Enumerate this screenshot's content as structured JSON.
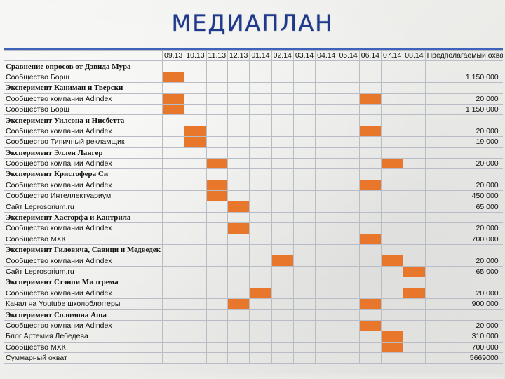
{
  "title": "МЕДИАПЛАН",
  "header": {
    "name": "",
    "months": [
      "09.13",
      "10.13",
      "11.13",
      "12.13",
      "01.14",
      "02.14",
      "03.14",
      "04.14",
      "05.14",
      "06.14",
      "07.14",
      "08.14"
    ],
    "reach": "Предполагаемый охват"
  },
  "rows": [
    {
      "name": "Сравнение опросов от Дэвида Мура",
      "section": true,
      "marks": [],
      "reach": ""
    },
    {
      "name": "Сообщество Борщ",
      "section": false,
      "marks": [
        0
      ],
      "reach": "1 150 000"
    },
    {
      "name": "Эксперимент  Каниман и Тверски",
      "section": true,
      "marks": [],
      "reach": ""
    },
    {
      "name": "Сообщество компании Adindex",
      "section": false,
      "marks": [
        0,
        9
      ],
      "reach": "20 000"
    },
    {
      "name": "Сообщество Борщ",
      "section": false,
      "marks": [
        0
      ],
      "reach": "1 150 000"
    },
    {
      "name": "Эксперимент  Уилсона и Нисбетта",
      "section": true,
      "marks": [],
      "reach": ""
    },
    {
      "name": "Сообщество компании Adindex",
      "section": false,
      "marks": [
        1,
        9
      ],
      "reach": "20 000"
    },
    {
      "name": "Сообщество Типичный рекламщик",
      "section": false,
      "marks": [
        1
      ],
      "reach": "19 000"
    },
    {
      "name": "Эксперимент Эллен Лангер",
      "section": true,
      "marks": [],
      "reach": ""
    },
    {
      "name": "Сообщество компании Adindex",
      "section": false,
      "marks": [
        2,
        10
      ],
      "reach": "20 000"
    },
    {
      "name": "Эксперимент Кристофера Си",
      "section": true,
      "marks": [],
      "reach": ""
    },
    {
      "name": "Сообщество компании Adindex",
      "section": false,
      "marks": [
        2,
        9
      ],
      "reach": "20 000"
    },
    {
      "name": "Сообщество Интеллектуариум",
      "section": false,
      "marks": [
        2
      ],
      "reach": "450 000"
    },
    {
      "name": "Сайт Leprosorium.ru",
      "section": false,
      "marks": [
        3
      ],
      "reach": "65 000"
    },
    {
      "name": "Эксперимент Хасторфа и Кантрила",
      "section": true,
      "marks": [],
      "reach": ""
    },
    {
      "name": "Сообщество компании Adindex",
      "section": false,
      "marks": [
        3
      ],
      "reach": "20 000"
    },
    {
      "name": "Сообщество МХК",
      "section": false,
      "marks": [
        9
      ],
      "reach": "700 000"
    },
    {
      "name": "Эксперимент Гиловича, Савици и Медведек",
      "section": true,
      "marks": [],
      "reach": ""
    },
    {
      "name": "Сообщество компании Adindex",
      "section": false,
      "marks": [
        5,
        10
      ],
      "reach": "20 000"
    },
    {
      "name": "Сайт Leprosorium.ru",
      "section": false,
      "marks": [
        11
      ],
      "reach": "65 000"
    },
    {
      "name": "Эксперимент Стэнли Милгрема",
      "section": true,
      "marks": [],
      "reach": ""
    },
    {
      "name": "Сообщество компании Adindex",
      "section": false,
      "marks": [
        4,
        11
      ],
      "reach": "20 000"
    },
    {
      "name": "Канал на Youtube школоблоггеры",
      "section": false,
      "marks": [
        3,
        9
      ],
      "reach": "900 000"
    },
    {
      "name": "Эксперимент Соломона Аша",
      "section": true,
      "marks": [],
      "reach": ""
    },
    {
      "name": "Сообщество компании Adindex",
      "section": false,
      "marks": [
        9
      ],
      "reach": "20 000"
    },
    {
      "name": "Блог Артемия Лебедева",
      "section": false,
      "marks": [
        10
      ],
      "reach": "310 000"
    },
    {
      "name": "Сообщество МХК",
      "section": false,
      "marks": [
        10
      ],
      "reach": "700 000"
    },
    {
      "name": "Суммарный охват",
      "section": false,
      "marks": [],
      "reach": "5669000"
    }
  ],
  "colors": {
    "mark": "#e8762b",
    "title": "#1f3a8a",
    "rule": "#3e63b8"
  }
}
